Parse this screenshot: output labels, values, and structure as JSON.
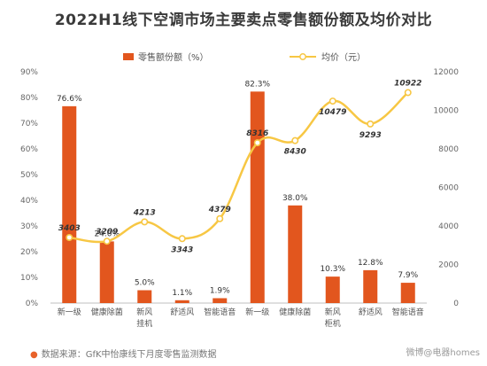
{
  "title": "2022H1线下空调市场主要卖点零售额份额及均价对比",
  "footer": {
    "bullet": "●",
    "text": "数据来源：GfK中怡康线下月度零售监测数据"
  },
  "watermark": "微博@电器homes",
  "colors": {
    "bar": "#e2561e",
    "line": "#f7c744",
    "point_fill": "#ffffff",
    "axis_text": "#666666",
    "grid": "#e6e6e6"
  },
  "chart_data": {
    "type": "bar",
    "categories": [
      [
        "新一级"
      ],
      [
        "健康除菌"
      ],
      [
        "新风",
        "挂机"
      ],
      [
        "舒适风"
      ],
      [
        "智能语音"
      ],
      [
        "新一级"
      ],
      [
        "健康除菌"
      ],
      [
        "新风",
        "柜机"
      ],
      [
        "舒适风"
      ],
      [
        "智能语音"
      ]
    ],
    "series": [
      {
        "name": "零售额份额（%）",
        "type": "bar",
        "axis": "left",
        "values": [
          76.6,
          24.0,
          5.0,
          1.1,
          1.9,
          82.3,
          38.0,
          10.3,
          12.8,
          7.9
        ],
        "labels": [
          "76.6%",
          "24.0%",
          "5.0%",
          "1.1%",
          "1.9%",
          "82.3%",
          "38.0%",
          "10.3%",
          "12.8%",
          "7.9%"
        ]
      },
      {
        "name": "均价（元）",
        "type": "line",
        "axis": "right",
        "values": [
          3403,
          3209,
          4213,
          3343,
          4379,
          8316,
          8430,
          10479,
          9293,
          10922
        ],
        "labels": [
          "3403",
          "3209",
          "4213",
          "3343",
          "4379",
          "8316",
          "8430",
          "10479",
          "9293",
          "10922"
        ]
      }
    ],
    "y_left": {
      "min": 0,
      "max": 90,
      "step": 10,
      "ticks": [
        "0%",
        "10%",
        "20%",
        "30%",
        "40%",
        "50%",
        "60%",
        "70%",
        "80%",
        "90%"
      ]
    },
    "y_right": {
      "min": 0,
      "max": 12000,
      "step": 2000,
      "ticks": [
        "0",
        "2000",
        "4000",
        "6000",
        "8000",
        "10000",
        "12000"
      ]
    },
    "legend_position": "top",
    "grid": false
  }
}
